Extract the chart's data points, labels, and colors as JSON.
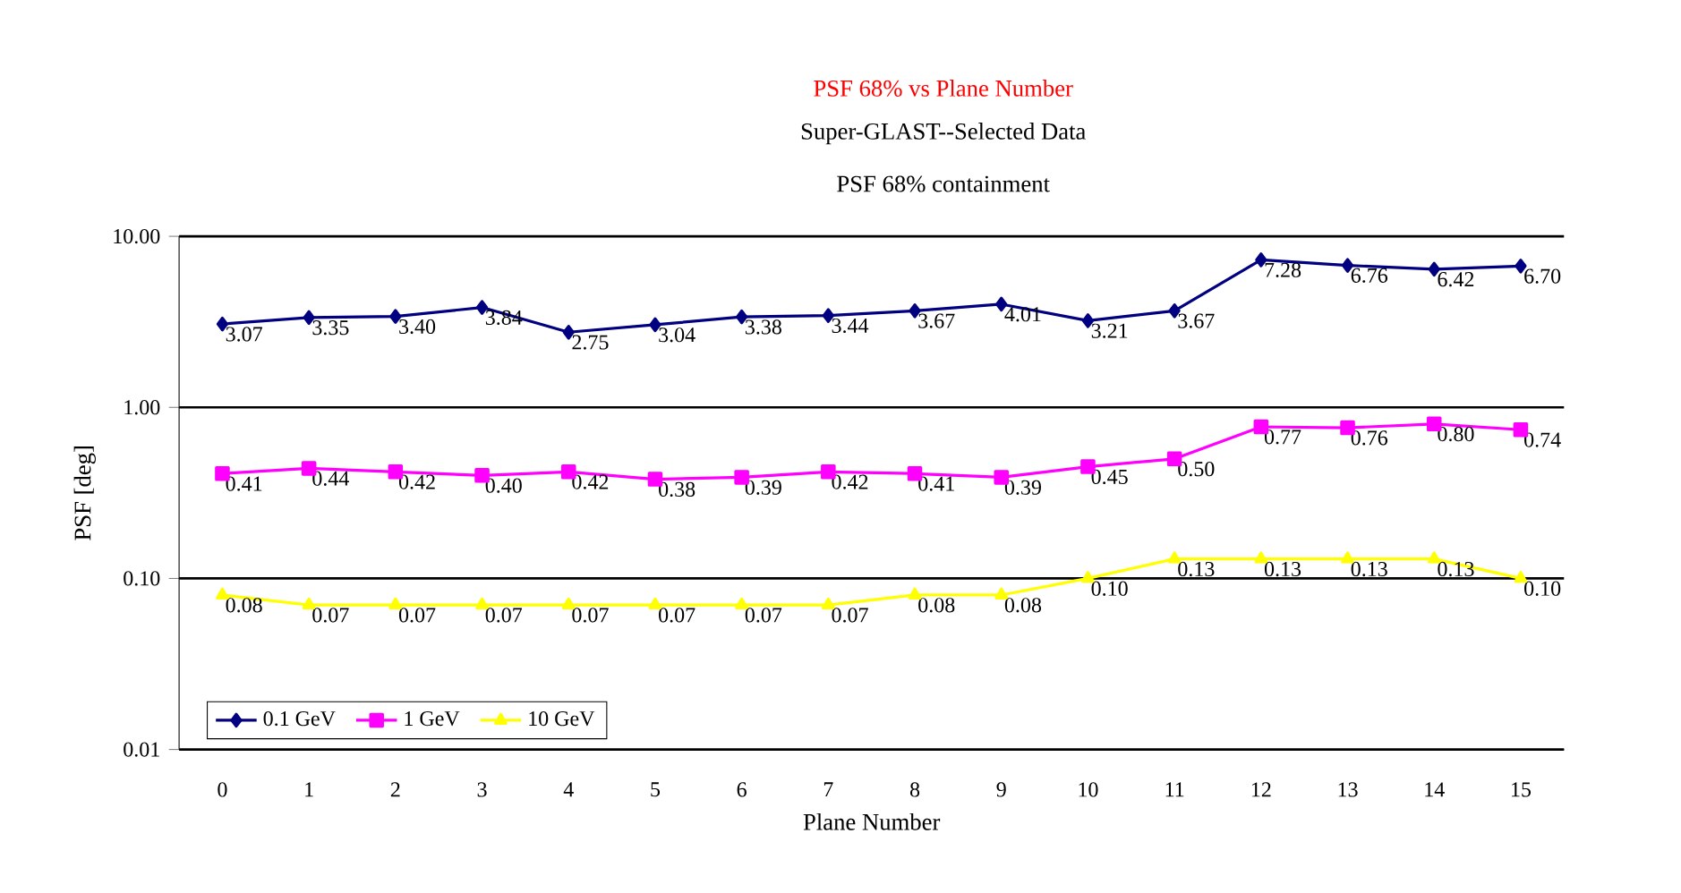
{
  "chart_data": {
    "type": "line",
    "title": "PSF 68% vs Plane Number",
    "subtitle": "Super-GLAST--Selected Data",
    "annotations": [
      "PSF 68% containment"
    ],
    "xlabel": "Plane Number",
    "ylabel": "PSF [deg]",
    "categories": [
      "0",
      "1",
      "2",
      "3",
      "4",
      "5",
      "6",
      "7",
      "8",
      "9",
      "10",
      "11",
      "12",
      "13",
      "14",
      "15"
    ],
    "series": [
      {
        "name": "0.1 GeV",
        "color": "#000080",
        "marker": "diamond",
        "values": [
          3.07,
          3.35,
          3.4,
          3.84,
          2.75,
          3.04,
          3.38,
          3.44,
          3.67,
          4.01,
          3.21,
          3.67,
          7.28,
          6.76,
          6.42,
          6.7
        ],
        "value_labels": [
          "3.07",
          "3.35",
          "3.40",
          "3.84",
          "2.75",
          "3.04",
          "3.38",
          "3.44",
          "3.67",
          "4.01",
          "3.21",
          "3.67",
          "7.28",
          "6.76",
          "6.42",
          "6.70"
        ]
      },
      {
        "name": "1 GeV",
        "color": "#ff00ff",
        "marker": "square",
        "values": [
          0.41,
          0.44,
          0.42,
          0.4,
          0.42,
          0.38,
          0.39,
          0.42,
          0.41,
          0.39,
          0.45,
          0.5,
          0.77,
          0.76,
          0.8,
          0.74
        ],
        "value_labels": [
          "0.41",
          "0.44",
          "0.42",
          "0.40",
          "0.42",
          "0.38",
          "0.39",
          "0.42",
          "0.41",
          "0.39",
          "0.45",
          "0.50",
          "0.77",
          "0.76",
          "0.80",
          "0.74"
        ]
      },
      {
        "name": "10 GeV",
        "color": "#ffff00",
        "marker": "triangle",
        "values": [
          0.08,
          0.07,
          0.07,
          0.07,
          0.07,
          0.07,
          0.07,
          0.07,
          0.08,
          0.08,
          0.1,
          0.13,
          0.13,
          0.13,
          0.13,
          0.1
        ],
        "value_labels": [
          "0.08",
          "0.07",
          "0.07",
          "0.07",
          "0.07",
          "0.07",
          "0.07",
          "0.07",
          "0.08",
          "0.08",
          "0.10",
          "0.13",
          "0.13",
          "0.13",
          "0.13",
          "0.10"
        ]
      }
    ],
    "log": "y",
    "ylim": [
      0.01,
      10
    ],
    "yticks": [
      {
        "value": 0.01,
        "label": "0.01"
      },
      {
        "value": 0.1,
        "label": "0.10"
      },
      {
        "value": 1,
        "label": "1.00"
      },
      {
        "value": 10,
        "label": "10.00"
      }
    ],
    "grid": "y",
    "legend": "bottom left"
  }
}
